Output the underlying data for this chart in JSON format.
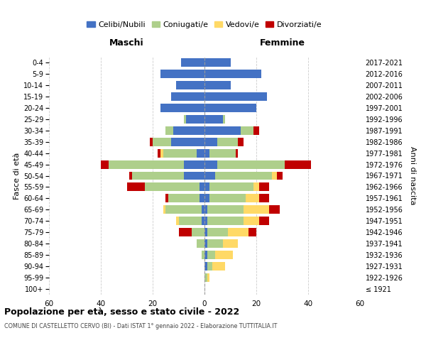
{
  "age_groups": [
    "100+",
    "95-99",
    "90-94",
    "85-89",
    "80-84",
    "75-79",
    "70-74",
    "65-69",
    "60-64",
    "55-59",
    "50-54",
    "45-49",
    "40-44",
    "35-39",
    "30-34",
    "25-29",
    "20-24",
    "15-19",
    "10-14",
    "5-9",
    "0-4"
  ],
  "birth_years": [
    "≤ 1921",
    "1922-1926",
    "1927-1931",
    "1932-1936",
    "1937-1941",
    "1942-1946",
    "1947-1951",
    "1952-1956",
    "1957-1961",
    "1962-1966",
    "1967-1971",
    "1972-1976",
    "1977-1981",
    "1982-1986",
    "1987-1991",
    "1992-1996",
    "1997-2001",
    "2002-2006",
    "2007-2011",
    "2012-2016",
    "2017-2021"
  ],
  "male": {
    "celibi": [
      0,
      0,
      0,
      0,
      0,
      0,
      1,
      1,
      2,
      2,
      8,
      8,
      3,
      13,
      12,
      7,
      17,
      13,
      11,
      17,
      9
    ],
    "coniugati": [
      0,
      0,
      0,
      1,
      3,
      5,
      9,
      14,
      12,
      21,
      20,
      29,
      13,
      7,
      3,
      1,
      0,
      0,
      0,
      0,
      0
    ],
    "vedovi": [
      0,
      0,
      0,
      0,
      0,
      0,
      1,
      1,
      0,
      0,
      0,
      0,
      1,
      0,
      0,
      0,
      0,
      0,
      0,
      0,
      0
    ],
    "divorziati": [
      0,
      0,
      0,
      0,
      0,
      5,
      0,
      0,
      1,
      7,
      1,
      3,
      1,
      1,
      0,
      0,
      0,
      0,
      0,
      0,
      0
    ]
  },
  "female": {
    "nubili": [
      0,
      0,
      1,
      1,
      1,
      1,
      1,
      1,
      2,
      2,
      4,
      5,
      2,
      5,
      14,
      7,
      20,
      24,
      10,
      22,
      10
    ],
    "coniugate": [
      0,
      1,
      2,
      3,
      6,
      8,
      14,
      14,
      14,
      17,
      22,
      26,
      10,
      8,
      5,
      1,
      0,
      0,
      0,
      0,
      0
    ],
    "vedove": [
      0,
      1,
      5,
      7,
      6,
      8,
      6,
      10,
      5,
      2,
      2,
      0,
      0,
      0,
      0,
      0,
      0,
      0,
      0,
      0,
      0
    ],
    "divorziate": [
      0,
      0,
      0,
      0,
      0,
      3,
      4,
      4,
      4,
      4,
      2,
      10,
      1,
      2,
      2,
      0,
      0,
      0,
      0,
      0,
      0
    ]
  },
  "colors": {
    "celibi": "#4472C4",
    "coniugati": "#AECF8B",
    "vedovi": "#FFD966",
    "divorziati": "#C00000"
  },
  "xlim": 60,
  "title": "Popolazione per età, sesso e stato civile - 2022",
  "subtitle": "COMUNE DI CASTELLETTO CERVO (BI) - Dati ISTAT 1° gennaio 2022 - Elaborazione TUTTITALIA.IT",
  "ylabel_left": "Fasce di età",
  "ylabel_right": "Anni di nascita",
  "xlabel_left": "Maschi",
  "xlabel_right": "Femmine",
  "legend_labels": [
    "Celibi/Nubili",
    "Coniugati/e",
    "Vedovi/e",
    "Divorziati/e"
  ],
  "bg_color": "#ffffff",
  "grid_color": "#cccccc"
}
